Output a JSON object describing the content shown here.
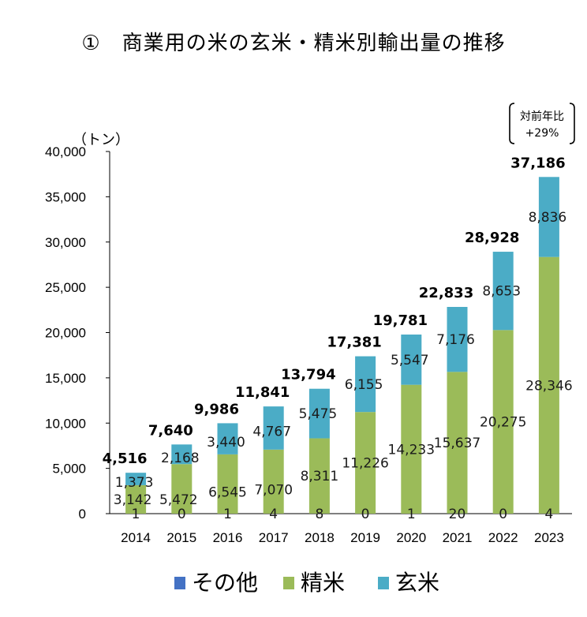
{
  "title": "①　商業用の米の玄米・精米別輸出量の推移",
  "chart_data": {
    "type": "bar",
    "stacked": true,
    "unit_label": "（トン）",
    "categories": [
      "2014",
      "2015",
      "2016",
      "2017",
      "2018",
      "2019",
      "2020",
      "2021",
      "2022",
      "2023"
    ],
    "series": [
      {
        "name": "その他",
        "color": "#4472C4",
        "values": [
          1,
          0,
          1,
          4,
          8,
          0,
          1,
          20,
          0,
          4
        ]
      },
      {
        "name": "精米",
        "color": "#9BBB59",
        "values": [
          3142,
          5472,
          6545,
          7070,
          8311,
          11226,
          14233,
          15637,
          20275,
          28346
        ]
      },
      {
        "name": "玄米",
        "color": "#4BACC6",
        "values": [
          1373,
          2168,
          3440,
          4767,
          5475,
          6155,
          5547,
          7176,
          8653,
          8836
        ]
      }
    ],
    "totals": [
      "4,516",
      "7,640",
      "9,986",
      "11,841",
      "13,794",
      "17,381",
      "19,781",
      "22,833",
      "28,928",
      "37,186"
    ],
    "y_ticks": [
      "0",
      "5,000",
      "10,000",
      "15,000",
      "20,000",
      "25,000",
      "30,000",
      "35,000",
      "40,000"
    ],
    "ylim": [
      0,
      40000
    ],
    "legend_position": "bottom",
    "annotation": {
      "line1": "対前年比",
      "line2": "+29%"
    }
  }
}
